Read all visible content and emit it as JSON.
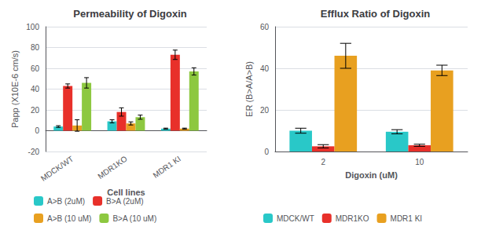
{
  "chart_data": [
    {
      "type": "bar",
      "title": "Permeability of Digoxin",
      "xlabel": "Cell lines",
      "ylabel": "Papp (X10E-6 cm/s)",
      "categories": [
        "MDCK/WT",
        "MDR1KO",
        "MDR1 KI"
      ],
      "series": [
        {
          "name": "A>B (2uM)",
          "color": "#29C8C8",
          "values": [
            4.0,
            9.0,
            2.0
          ],
          "errors": [
            0.8,
            1.5,
            0.5
          ]
        },
        {
          "name": "B>A (2uM)",
          "color": "#E8302A",
          "values": [
            43.0,
            18.0,
            73.0
          ],
          "errors": [
            2.0,
            4.0,
            4.5
          ]
        },
        {
          "name": "A>B (10 uM)",
          "color": "#E8A020",
          "values": [
            5.0,
            7.0,
            2.0
          ],
          "errors": [
            5.5,
            1.5,
            0.5
          ]
        },
        {
          "name": "B>A (10 uM)",
          "color": "#8DC840",
          "values": [
            46.0,
            13.0,
            57.0
          ],
          "errors": [
            5.0,
            2.0,
            3.5
          ]
        }
      ],
      "ylim": [
        -20,
        100
      ],
      "yticks": [
        -20,
        0,
        20,
        40,
        60,
        80,
        100
      ],
      "grid": true,
      "legend": "bottom"
    },
    {
      "type": "bar",
      "title": "Efflux Ratio of Digoxin",
      "xlabel": "Digoxin (uM)",
      "ylabel": "ER (B>A/A>B)",
      "categories": [
        "2",
        "10"
      ],
      "series": [
        {
          "name": "MDCK/WT",
          "color": "#29C8C8",
          "values": [
            10.0,
            9.5
          ],
          "errors": [
            1.2,
            1.0
          ]
        },
        {
          "name": "MDR1KO",
          "color": "#E8302A",
          "values": [
            2.5,
            3.0
          ],
          "errors": [
            0.8,
            0.5
          ]
        },
        {
          "name": "MDR1 KI",
          "color": "#E8A020",
          "values": [
            46.0,
            39.0
          ],
          "errors": [
            6.0,
            2.5
          ]
        }
      ],
      "ylim": [
        0,
        60
      ],
      "yticks": [
        0,
        20,
        40,
        60
      ],
      "grid": true,
      "legend": "bottom"
    }
  ]
}
